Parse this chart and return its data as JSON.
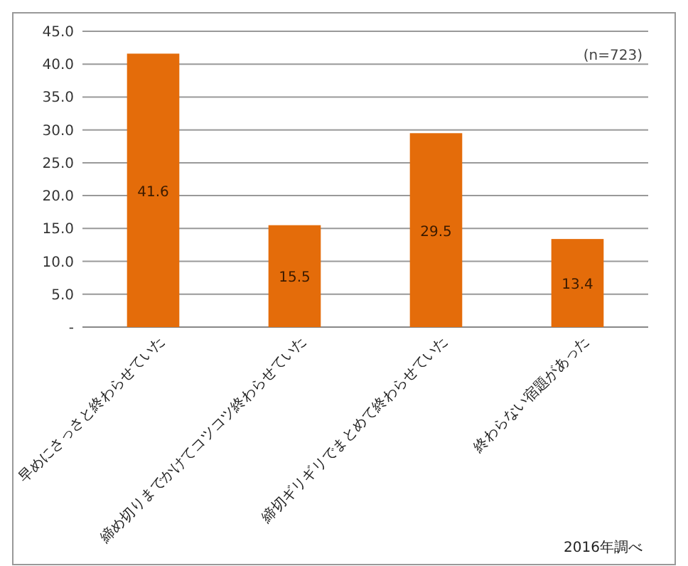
{
  "chart_data": {
    "type": "bar",
    "categories": [
      "早めにさっさと終わらせていた",
      "締め切りまでかけてコツコツ終わらせていた",
      "締切ギリギリでまとめて終わらせていた",
      "終わらない宿題があった"
    ],
    "values": [
      41.6,
      15.5,
      29.5,
      13.4
    ],
    "color": "#e46c0a",
    "ylim": [
      0,
      45
    ],
    "yticks": [
      {
        "value": 0,
        "label": "-"
      },
      {
        "value": 5,
        "label": "5.0"
      },
      {
        "value": 10,
        "label": "10.0"
      },
      {
        "value": 15,
        "label": "15.0"
      },
      {
        "value": 20,
        "label": "20.0"
      },
      {
        "value": 25,
        "label": "25.0"
      },
      {
        "value": 30,
        "label": "30.0"
      },
      {
        "value": 35,
        "label": "35.0"
      },
      {
        "value": 40,
        "label": "40.0"
      },
      {
        "value": 45,
        "label": "45.0"
      }
    ],
    "grid": "y",
    "data_labels": true,
    "annotations": [
      "(n=723)",
      "2016年調べ"
    ]
  }
}
